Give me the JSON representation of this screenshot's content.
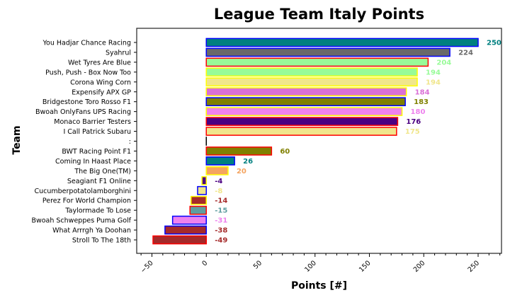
{
  "chart_data": {
    "type": "bar",
    "orientation": "horizontal",
    "title": "League Team Italy Points",
    "xlabel": "Points [#]",
    "ylabel": "Team",
    "xlim": [
      -64,
      271.5
    ],
    "xticks": [
      -50,
      0,
      50,
      100,
      150,
      200,
      250
    ],
    "grid": false,
    "legend": null,
    "categories": [
      "You Hadjar Chance Racing",
      "Syahrul",
      "Wet Tyres Are Blue",
      "Push, Push - Box Now Too",
      "Corona Wing Corn",
      "Expensify APX GP",
      "Bridgestone Toro Rosso F1",
      "Bwoah OnlyFans UPS Racing",
      "Monaco Barrier Testers",
      "I Call Patrick Subaru",
      ":",
      "BWT Racing Point F1",
      "Coming In Haast Place",
      "The Big One(TM)",
      "Seagiant F1 Online",
      "Cucumberpotatolamborghini",
      "Perez For World Champion",
      "Taylormade To Lose",
      "Bwoah Schweppes Puma Golf",
      "What Arrrgh Ya Doohan",
      "Stroll To The 18th"
    ],
    "values": [
      250,
      224,
      204,
      194,
      194,
      184,
      183,
      180,
      176,
      175,
      0,
      60,
      26,
      20,
      -4,
      -8,
      -14,
      -15,
      -31,
      -38,
      -49
    ],
    "bar_labels": [
      "250",
      "224",
      "204",
      "194",
      "194",
      "184",
      "183",
      "180",
      "176",
      "175",
      "",
      "60",
      "26",
      "20",
      "-4",
      "-8",
      "-14",
      "-15",
      "-31",
      "-38",
      "-49"
    ],
    "fill_colors": [
      "#008080",
      "#696969",
      "#98FB98",
      "#98FB98",
      "#F0E68C",
      "#DA70D6",
      "#808000",
      "#EE82EE",
      "#4B0082",
      "#F0E68C",
      "#000000",
      "#808000",
      "#008080",
      "#F4A460",
      "#4B0082",
      "#F0E68C",
      "#A52A2A",
      "#5F9EA0",
      "#EE82EE",
      "#A52A2A",
      "#A52A2A"
    ],
    "edge_colors": [
      "#0000FF",
      "#0000FF",
      "#FF0000",
      "#FFFF00",
      "#FFFF00",
      "#FFFF00",
      "#0000FF",
      "#FFFF00",
      "#FF0000",
      "#FF0000",
      "#000000",
      "#FF0000",
      "#0000FF",
      "#FFFF00",
      "#FFFF00",
      "#0000FF",
      "#FFFF00",
      "#FF0000",
      "#0000FF",
      "#0000FF",
      "#FF0000"
    ]
  }
}
